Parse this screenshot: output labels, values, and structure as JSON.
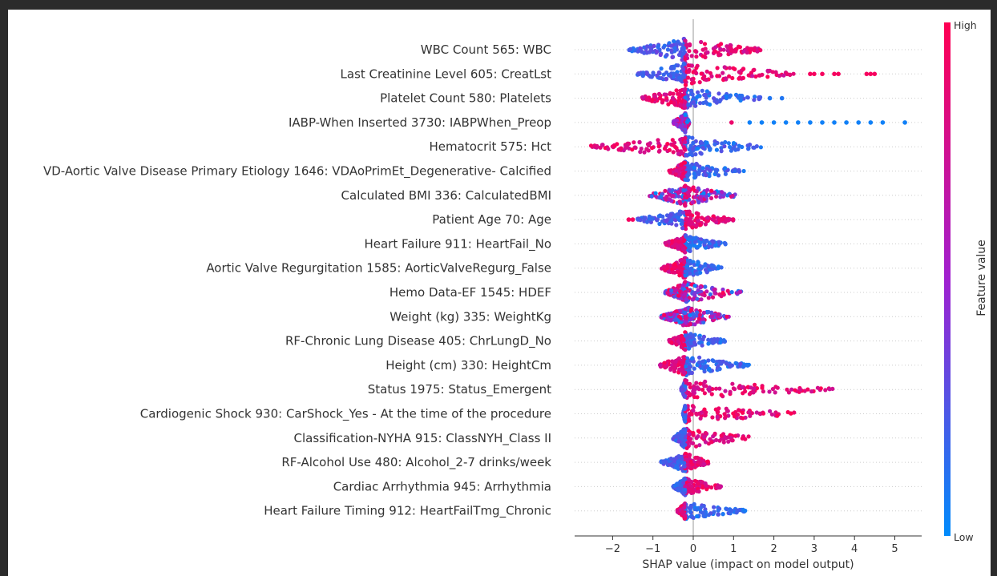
{
  "chart_data": {
    "type": "scatter",
    "subtype": "shap-beeswarm",
    "xlabel": "SHAP value (impact on model output)",
    "x_ticks": [
      -2,
      -1,
      0,
      1,
      2,
      3,
      4,
      5
    ],
    "xlim": [
      -2.95,
      5.7
    ],
    "colorbar": {
      "label": "Feature value",
      "high": "High",
      "low": "Low",
      "placement": "right"
    },
    "colors": {
      "low": "#008bfb",
      "high": "#ff0052",
      "mid": "#a020d0",
      "zero_line": "#999999",
      "grid": "#cccccc"
    },
    "features": [
      {
        "name": "WBC Count 565: WBC",
        "min": -1.6,
        "max": 1.8,
        "low_side": "left",
        "width": 13,
        "outliers": []
      },
      {
        "name": "Last Creatinine Level 605: CreatLst",
        "min": -1.4,
        "max": 2.6,
        "low_side": "left",
        "width": 13,
        "outliers": [
          2.9,
          3.0,
          3.2,
          3.5,
          3.6,
          4.3,
          4.4,
          4.5
        ]
      },
      {
        "name": "Platelet Count 580: Platelets",
        "min": -1.3,
        "max": 1.7,
        "low_side": "right",
        "width": 12,
        "outliers": [
          1.9,
          2.2
        ]
      },
      {
        "name": "IABP-When Inserted 3730: IABPWhen_Preop",
        "min": -0.5,
        "max": -0.1,
        "low_side": "mixed",
        "width": 11,
        "outliers": [
          0.95,
          1.4,
          1.7,
          2.0,
          2.3,
          2.6,
          2.9,
          3.2,
          3.5,
          3.8,
          4.1,
          4.4,
          4.7,
          5.25
        ]
      },
      {
        "name": "Hematocrit 575: Hct",
        "min": -2.6,
        "max": 1.7,
        "low_side": "right",
        "width": 12,
        "outliers": []
      },
      {
        "name": "VD-Aortic Valve Disease Primary Etiology 1646: VDAoPrimEt_Degenerative- Calcified",
        "min": -0.6,
        "max": 1.3,
        "low_side": "right",
        "width": 11,
        "outliers": []
      },
      {
        "name": "Calculated BMI 336: CalculatedBMI",
        "min": -1.1,
        "max": 1.1,
        "low_side": "mixed",
        "width": 12,
        "outliers": []
      },
      {
        "name": "Patient Age 70: Age",
        "min": -1.4,
        "max": 1.0,
        "low_side": "left",
        "width": 12,
        "outliers": [
          -1.5,
          -1.6
        ]
      },
      {
        "name": "Heart Failure 911: HeartFail_No",
        "min": -0.7,
        "max": 0.8,
        "low_side": "right",
        "width": 10,
        "outliers": []
      },
      {
        "name": "Aortic Valve Regurgitation 1585: AorticValveRegurg_False",
        "min": -0.8,
        "max": 0.7,
        "low_side": "right",
        "width": 12,
        "outliers": []
      },
      {
        "name": "Hemo Data-EF 1545: HDEF",
        "min": -0.7,
        "max": 1.2,
        "low_side": "mixed",
        "width": 12,
        "outliers": []
      },
      {
        "name": "Weight (kg) 335: WeightKg",
        "min": -0.8,
        "max": 0.9,
        "low_side": "mixed",
        "width": 12,
        "outliers": []
      },
      {
        "name": "RF-Chronic Lung Disease 405: ChrLungD_No",
        "min": -0.6,
        "max": 0.8,
        "low_side": "right",
        "width": 10,
        "outliers": []
      },
      {
        "name": "Height (cm) 330: HeightCm",
        "min": -0.9,
        "max": 1.4,
        "low_side": "right",
        "width": 12,
        "outliers": []
      },
      {
        "name": "Status 1975: Status_Emergent",
        "min": -0.3,
        "max": 3.5,
        "low_side": "left",
        "width": 11,
        "outliers": []
      },
      {
        "name": "Cardiogenic Shock 930: CarShock_Yes - At the time of the procedure",
        "min": -0.25,
        "max": 2.8,
        "low_side": "left",
        "width": 10,
        "outliers": []
      },
      {
        "name": "Classification-NYHA 915: ClassNYH_Class II",
        "min": -0.5,
        "max": 1.5,
        "low_side": "left",
        "width": 12,
        "outliers": []
      },
      {
        "name": "RF-Alcohol Use 480: Alcohol_2-7 drinks/week",
        "min": -0.8,
        "max": 0.4,
        "low_side": "left",
        "width": 11,
        "outliers": []
      },
      {
        "name": "Cardiac Arrhythmia 945: Arrhythmia",
        "min": -0.5,
        "max": 0.7,
        "low_side": "left",
        "width": 10,
        "outliers": []
      },
      {
        "name": "Heart Failure Timing 912: HeartFailTmg_Chronic",
        "min": -0.4,
        "max": 1.3,
        "low_side": "right",
        "width": 10,
        "outliers": []
      }
    ]
  }
}
